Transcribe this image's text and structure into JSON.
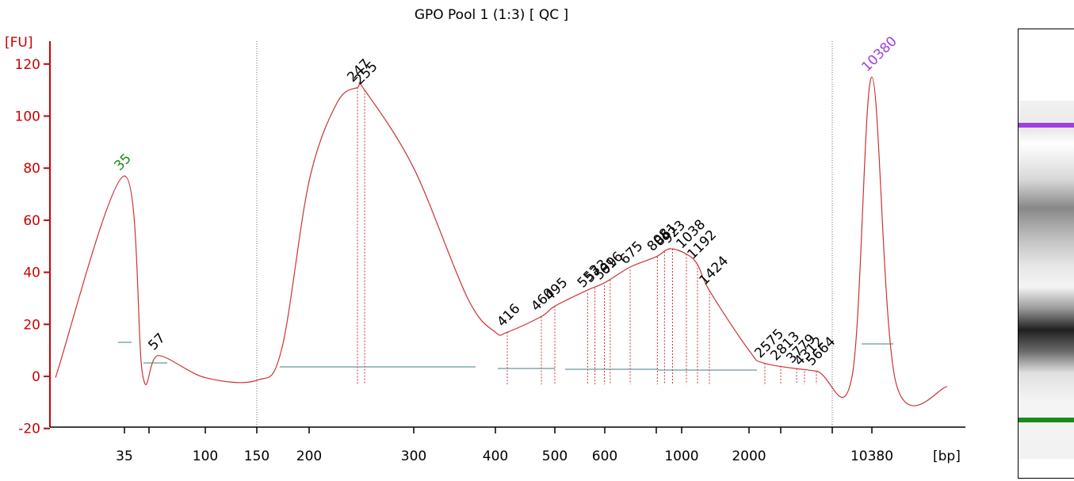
{
  "chart_data": {
    "type": "line",
    "title": "GPO Pool 1 (1:3)  [ QC ]",
    "ylabel": "[FU]",
    "xlabel": "[bp]",
    "ylim": [
      -20,
      120
    ],
    "yticks": [
      "-20",
      "0",
      "20",
      "40",
      "60",
      "80",
      "100",
      "120"
    ],
    "xticks": [
      "35",
      "",
      "100",
      "150",
      "200",
      "300",
      "400",
      "500",
      "600",
      "",
      "1000",
      "2000",
      "",
      "",
      "10380"
    ],
    "x_scale": "ladder (non-linear, bp by migration time)",
    "gridlines": "dotted vertical at 150 bp and between 2000 and 10380 bp",
    "series": [
      {
        "x": [
          "30",
          "35",
          "40",
          "57",
          "100",
          "150",
          "170",
          "200",
          "230",
          "247",
          "255",
          "300",
          "360",
          "400",
          "416",
          "460",
          "495",
          "550",
          "600",
          "675",
          "800",
          "900",
          "1038",
          "1192",
          "1424",
          "2000",
          "2575",
          "5664",
          "8000",
          "10380",
          "13000",
          "15000"
        ],
        "values": [
          -0.5,
          77,
          0.5,
          8,
          -0.5,
          -1.5,
          10,
          75,
          105,
          111,
          110,
          80,
          30,
          17,
          17,
          23,
          27,
          33,
          36,
          42,
          46,
          49,
          47,
          43,
          33,
          10,
          5,
          2,
          0,
          115,
          -2,
          -4
        ]
      }
    ],
    "peak_labels": [
      {
        "label": "35",
        "bp": "35",
        "height": 77,
        "color": "#1a8a1a"
      },
      {
        "label": "57",
        "bp": "57",
        "height": 8,
        "color": "#000000"
      },
      {
        "label": "247",
        "bp": "247",
        "height": 111,
        "color": "#000000"
      },
      {
        "label": "255",
        "bp": "255",
        "height": 110,
        "color": "#000000"
      },
      {
        "label": "416",
        "bp": "416",
        "height": 17,
        "color": "#000000"
      },
      {
        "label": "460",
        "bp": "460",
        "height": 23,
        "color": "#000000"
      },
      {
        "label": "495",
        "bp": "495",
        "height": 27,
        "color": "#000000"
      },
      {
        "label": "553",
        "bp": "553",
        "height": 32,
        "color": "#000000"
      },
      {
        "label": "573",
        "bp": "573",
        "height": 34,
        "color": "#000000"
      },
      {
        "label": "599",
        "bp": "599",
        "height": 35,
        "color": "#000000"
      },
      {
        "label": "616",
        "bp": "616",
        "height": 37,
        "color": "#000000"
      },
      {
        "label": "675",
        "bp": "675",
        "height": 41,
        "color": "#000000"
      },
      {
        "label": "808",
        "bp": "808",
        "height": 46,
        "color": "#000000"
      },
      {
        "label": "861",
        "bp": "861",
        "height": 48,
        "color": "#000000"
      },
      {
        "label": "923",
        "bp": "923",
        "height": 49,
        "color": "#000000"
      },
      {
        "label": "1038",
        "bp": "1038",
        "height": 47,
        "color": "#000000"
      },
      {
        "label": "1192",
        "bp": "1192",
        "height": 43,
        "color": "#000000"
      },
      {
        "label": "1424",
        "bp": "1424",
        "height": 33,
        "color": "#000000"
      },
      {
        "label": "2575",
        "bp": "2575",
        "height": 5,
        "color": "#000000"
      },
      {
        "label": "2813",
        "bp": "2813",
        "height": 4,
        "color": "#000000"
      },
      {
        "label": "3779",
        "bp": "3779",
        "height": 3,
        "color": "#000000"
      },
      {
        "label": "4312",
        "bp": "4312",
        "height": 2,
        "color": "#000000"
      },
      {
        "label": "5664",
        "bp": "5664",
        "height": 2,
        "color": "#000000"
      },
      {
        "label": "10380",
        "bp": "10380",
        "height": 115,
        "color": "#a040e0"
      }
    ],
    "colors": {
      "trace": "#cc3333",
      "axis": "#cc0000",
      "baseline": "#3f7f7f",
      "lower_marker": "#1a8a1a",
      "upper_marker": "#a040e0"
    },
    "gel_image": {
      "bands": [
        {
          "name": "upper-marker-band",
          "color": "#a040e0"
        },
        {
          "name": "lower-marker-band",
          "color": "#1a8a1a"
        }
      ]
    }
  }
}
